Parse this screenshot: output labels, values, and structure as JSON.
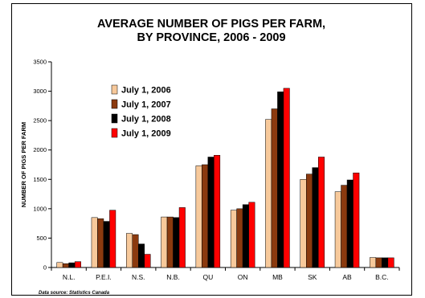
{
  "chart_data": {
    "type": "bar",
    "title": [
      "AVERAGE NUMBER OF PIGS PER FARM,",
      "BY PROVINCE, 2006 - 2009"
    ],
    "ylabel": "NUMBER OF PIGS PER FARM",
    "xlabel": "",
    "ylim": [
      0,
      3500
    ],
    "yticks": [
      0,
      500,
      1000,
      1500,
      2000,
      2500,
      3000,
      3500
    ],
    "grid": false,
    "legend_position": "upper-left",
    "categories": [
      "N.L.",
      "P.E.I.",
      "N.S.",
      "N.B.",
      "QU",
      "ON",
      "MB",
      "SK",
      "AB",
      "B.C."
    ],
    "series": [
      {
        "name": "July 1, 2006",
        "color": "#f7c99b",
        "values": [
          85,
          850,
          580,
          860,
          1730,
          975,
          2520,
          1500,
          1290,
          170
        ]
      },
      {
        "name": "July 1, 2007",
        "color": "#8b3a0f",
        "values": [
          65,
          830,
          560,
          860,
          1750,
          1000,
          2700,
          1590,
          1400,
          165
        ]
      },
      {
        "name": "July 1, 2008",
        "color": "#000000",
        "values": [
          80,
          785,
          400,
          850,
          1880,
          1070,
          2990,
          1700,
          1490,
          165
        ]
      },
      {
        "name": "July 1, 2009",
        "color": "#ff0000",
        "values": [
          100,
          975,
          225,
          1020,
          1910,
          1110,
          3050,
          1880,
          1610,
          165
        ]
      }
    ]
  },
  "source_note": "Data source: Statistics Canada"
}
